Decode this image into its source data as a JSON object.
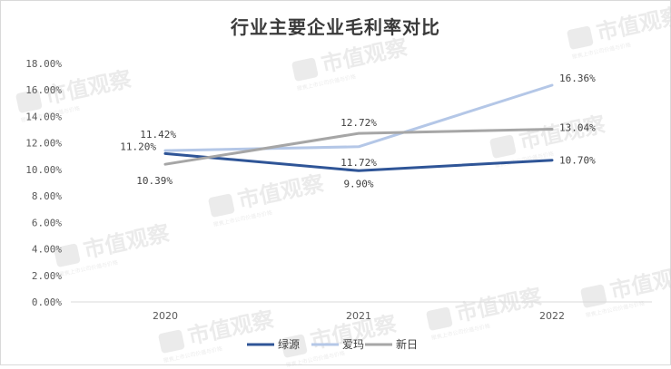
{
  "chart_data": {
    "type": "line",
    "title": "行业主要企业毛利率对比",
    "categories": [
      "2020",
      "2021",
      "2022"
    ],
    "ylim": [
      0,
      18
    ],
    "yticks": [
      "0.00%",
      "2.00%",
      "4.00%",
      "6.00%",
      "8.00%",
      "10.00%",
      "12.00%",
      "14.00%",
      "16.00%",
      "18.00%"
    ],
    "series": [
      {
        "name": "绿源",
        "color": "#2f5597",
        "values": [
          11.2,
          9.9,
          10.7
        ],
        "labels": [
          "11.20%",
          "9.90%",
          "10.70%"
        ]
      },
      {
        "name": "爱玛",
        "color": "#b4c7e7",
        "values": [
          11.42,
          11.72,
          16.36
        ],
        "labels": [
          "11.42%",
          "11.72%",
          "16.36%"
        ]
      },
      {
        "name": "新日",
        "color": "#a6a6a6",
        "values": [
          10.39,
          12.72,
          13.04
        ],
        "labels": [
          "10.39%",
          "12.72%",
          "13.04%"
        ]
      }
    ],
    "grid": false,
    "legend": "bottom"
  },
  "watermark": {
    "text": "市值观察",
    "subtext": "聚焦上市公司价值与价格"
  }
}
